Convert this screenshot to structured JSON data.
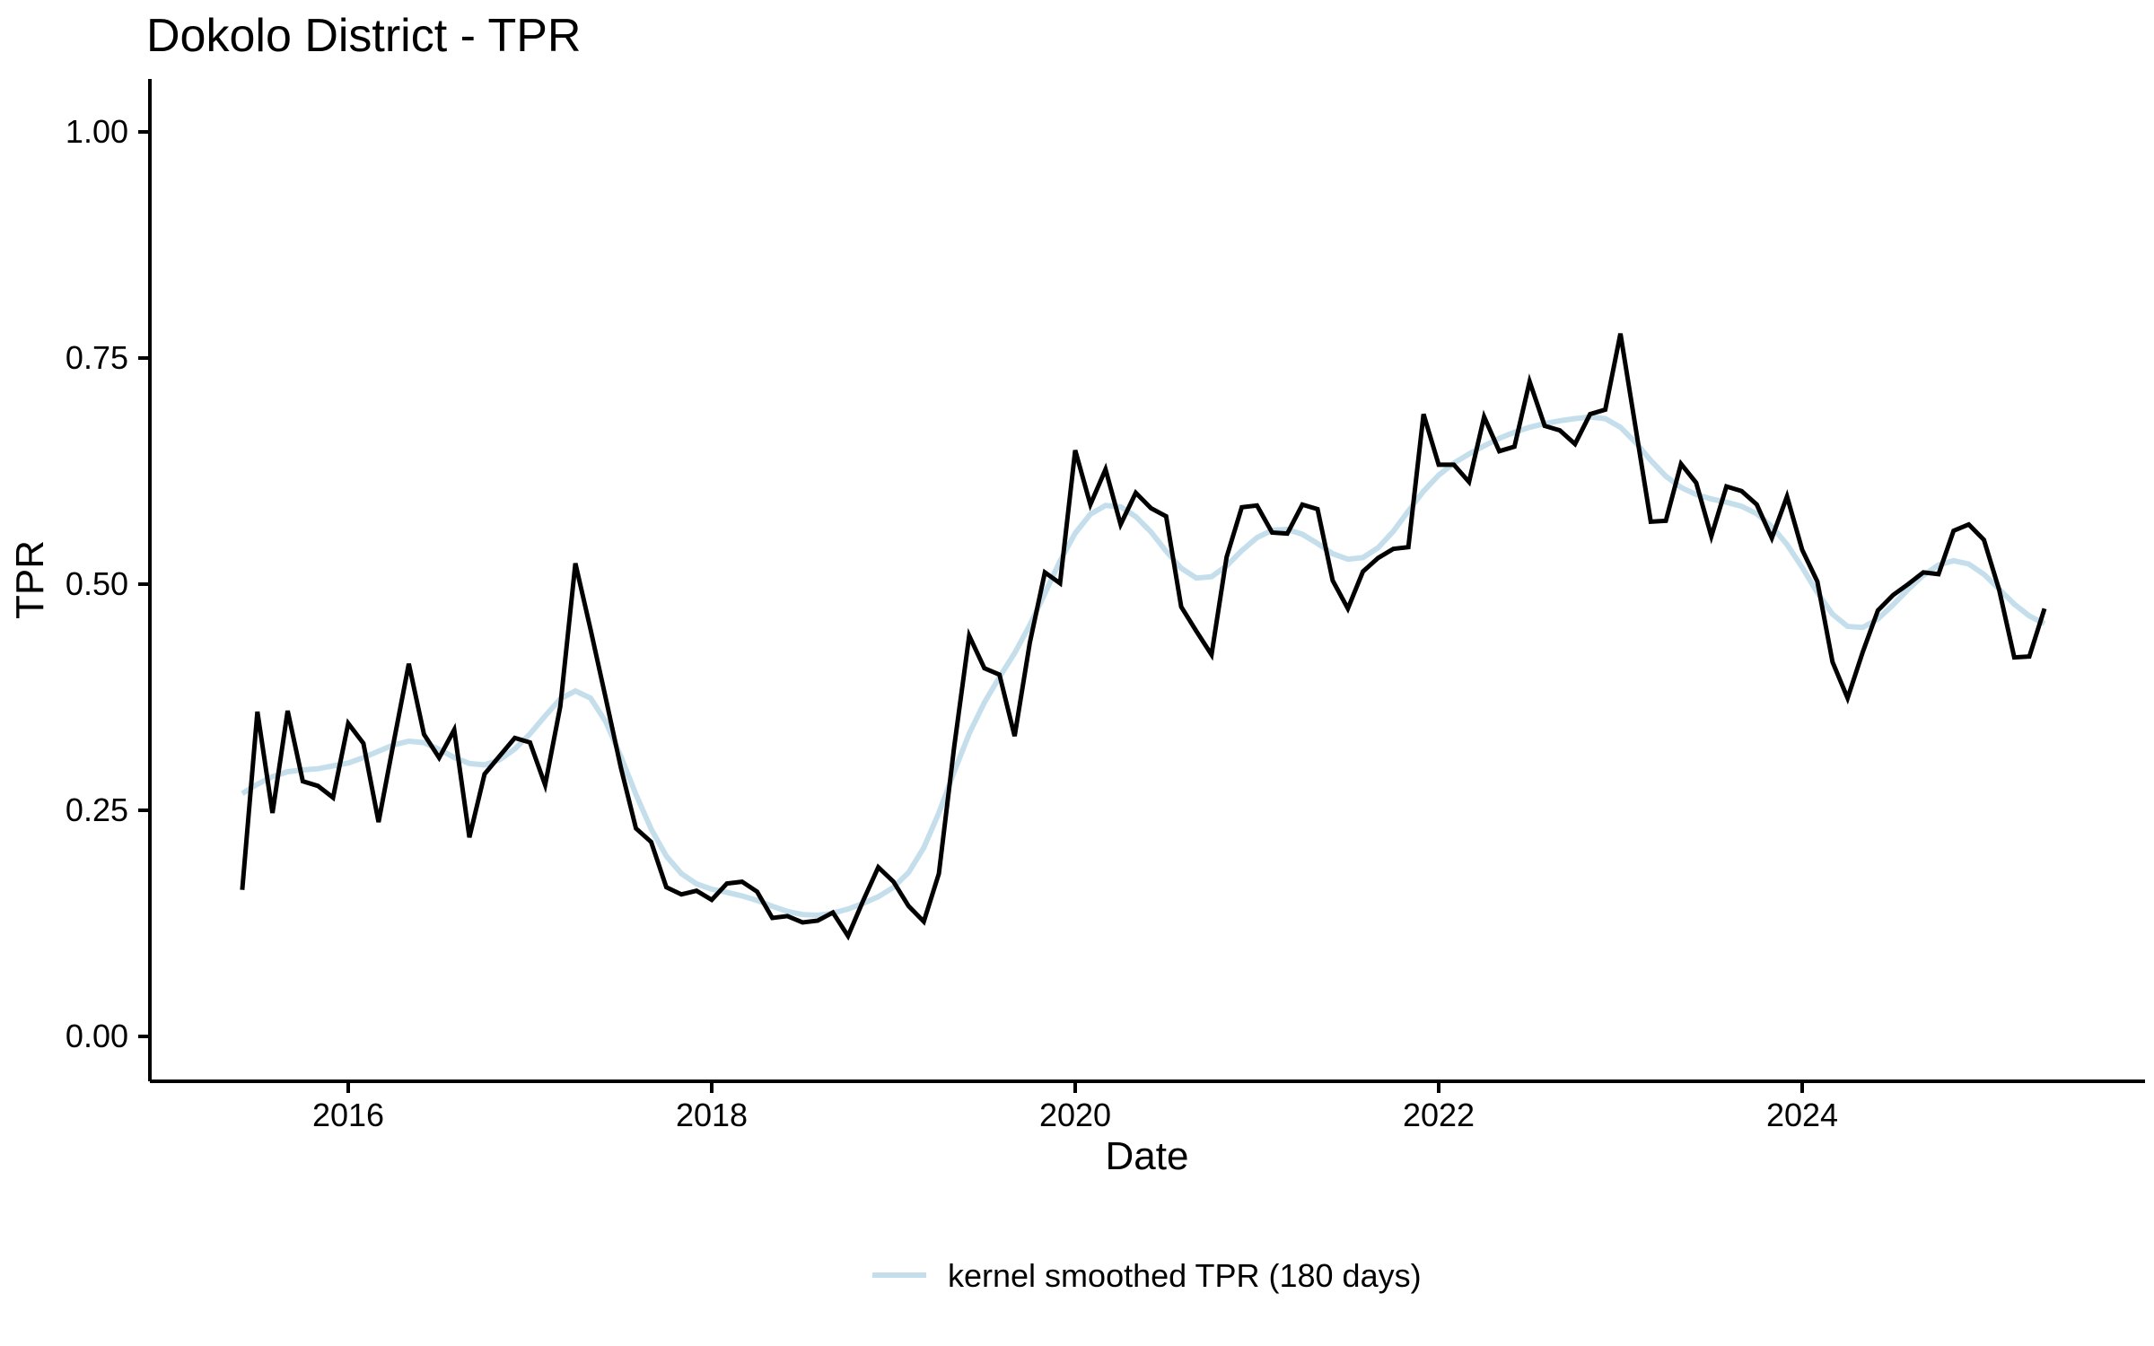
{
  "title": "Dokolo District - TPR",
  "axes": {
    "x_label": "Date",
    "y_label": "TPR",
    "x_tick_labels": [
      "2016",
      "2018",
      "2020",
      "2022",
      "2024"
    ],
    "y_tick_labels": [
      "0.00",
      "0.25",
      "0.50",
      "0.75",
      "1.00"
    ]
  },
  "legend": {
    "label": "kernel smoothed TPR (180 days)"
  },
  "colors": {
    "raw_line": "#000000",
    "smoothed_line": "#c4dfeb",
    "text": "#000000"
  },
  "chart_data": {
    "type": "line",
    "title": "Dokolo District - TPR",
    "xlabel": "Date",
    "ylabel": "TPR",
    "ylim": [
      0,
      1.0
    ],
    "y_ticks": [
      0,
      0.25,
      0.5,
      0.75,
      1.0
    ],
    "x_ticks_years": [
      2016,
      2018,
      2020,
      2022,
      2024
    ],
    "grid": false,
    "legend_position": "bottom",
    "x": [
      "2015-06",
      "2015-07",
      "2015-08",
      "2015-09",
      "2015-10",
      "2015-11",
      "2015-12",
      "2016-01",
      "2016-02",
      "2016-03",
      "2016-04",
      "2016-05",
      "2016-06",
      "2016-07",
      "2016-08",
      "2016-09",
      "2016-10",
      "2016-11",
      "2016-12",
      "2017-01",
      "2017-02",
      "2017-03",
      "2017-04",
      "2017-05",
      "2017-06",
      "2017-07",
      "2017-08",
      "2017-09",
      "2017-10",
      "2017-11",
      "2017-12",
      "2018-01",
      "2018-02",
      "2018-03",
      "2018-04",
      "2018-05",
      "2018-06",
      "2018-07",
      "2018-08",
      "2018-09",
      "2018-10",
      "2018-11",
      "2018-12",
      "2019-01",
      "2019-02",
      "2019-03",
      "2019-04",
      "2019-05",
      "2019-06",
      "2019-07",
      "2019-08",
      "2019-09",
      "2019-10",
      "2019-11",
      "2019-12",
      "2020-01",
      "2020-02",
      "2020-03",
      "2020-04",
      "2020-05",
      "2020-06",
      "2020-07",
      "2020-08",
      "2020-09",
      "2020-10",
      "2020-11",
      "2020-12",
      "2021-01",
      "2021-02",
      "2021-03",
      "2021-04",
      "2021-05",
      "2021-06",
      "2021-07",
      "2021-08",
      "2021-09",
      "2021-10",
      "2021-11",
      "2021-12",
      "2022-01",
      "2022-02",
      "2022-03",
      "2022-04",
      "2022-05",
      "2022-06",
      "2022-07",
      "2022-08",
      "2022-09",
      "2022-10",
      "2022-11",
      "2022-12",
      "2023-01",
      "2023-02",
      "2023-03",
      "2023-04",
      "2023-05",
      "2023-06",
      "2023-07",
      "2023-08",
      "2023-09",
      "2023-10",
      "2023-11",
      "2023-12",
      "2024-01",
      "2024-02",
      "2024-03",
      "2024-04",
      "2024-05",
      "2024-06",
      "2024-07",
      "2024-08",
      "2024-09",
      "2024-10",
      "2024-11",
      "2024-12",
      "2025-01",
      "2025-02",
      "2025-03",
      "2025-04",
      "2025-05"
    ],
    "series": [
      {
        "name": "TPR",
        "color": "#000000",
        "values": [
          0.162,
          0.359,
          0.247,
          0.36,
          0.282,
          0.277,
          0.264,
          0.346,
          0.324,
          0.237,
          0.325,
          0.412,
          0.334,
          0.308,
          0.339,
          0.22,
          0.29,
          0.31,
          0.33,
          0.325,
          0.278,
          0.365,
          0.523,
          0.45,
          0.374,
          0.297,
          0.23,
          0.215,
          0.165,
          0.157,
          0.161,
          0.151,
          0.169,
          0.171,
          0.16,
          0.131,
          0.133,
          0.126,
          0.128,
          0.137,
          0.111,
          0.15,
          0.187,
          0.171,
          0.144,
          0.127,
          0.18,
          0.319,
          0.443,
          0.407,
          0.4,
          0.332,
          0.435,
          0.513,
          0.501,
          0.648,
          0.588,
          0.627,
          0.566,
          0.601,
          0.584,
          0.575,
          0.475,
          0.448,
          0.422,
          0.53,
          0.585,
          0.587,
          0.557,
          0.556,
          0.588,
          0.583,
          0.504,
          0.473,
          0.514,
          0.529,
          0.539,
          0.541,
          0.688,
          0.632,
          0.632,
          0.613,
          0.685,
          0.647,
          0.652,
          0.724,
          0.675,
          0.67,
          0.655,
          0.688,
          0.693,
          0.777,
          0.673,
          0.569,
          0.57,
          0.633,
          0.612,
          0.553,
          0.608,
          0.603,
          0.588,
          0.551,
          0.597,
          0.538,
          0.503,
          0.414,
          0.374,
          0.425,
          0.471,
          0.488,
          0.5,
          0.513,
          0.511,
          0.559,
          0.566,
          0.549,
          0.494,
          0.419,
          0.42,
          0.473
        ]
      },
      {
        "name": "kernel smoothed TPR (180 days)",
        "color": "#c4dfeb",
        "derived_from": "TPR",
        "kernel": "gaussian",
        "window_days": 180,
        "sigma_months": 2.2
      }
    ]
  }
}
